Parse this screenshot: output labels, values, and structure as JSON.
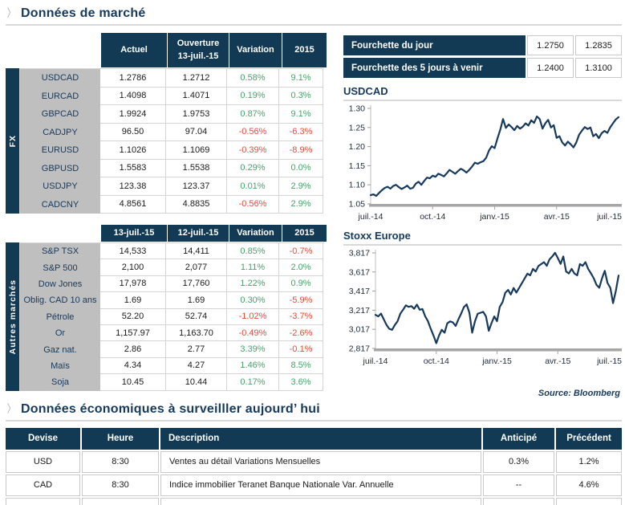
{
  "icons": {
    "chevron": "〉"
  },
  "colors": {
    "navy": "#133a54",
    "heading_text": "#17395c",
    "label_gray": "#bfbfbf",
    "positive_green": "#47a26c",
    "negative_red": "#e94a3b",
    "axis_gray": "#a6a6a6",
    "rule_gray": "#d9d9d9"
  },
  "sections": {
    "market": {
      "title": "Données de marché"
    },
    "econ": {
      "title": "Données économiques à surveilller aujourd’ hui"
    },
    "source": "Source: Bloomberg"
  },
  "range_table": {
    "rows": [
      {
        "label": "Fourchette du jour",
        "low": "1.2750",
        "high": "1.2835"
      },
      {
        "label": "Fourchette des 5 jours à venir",
        "low": "1.2400",
        "high": "1.3100"
      }
    ]
  },
  "fx_table": {
    "side_label": "FX",
    "headers": {
      "col1": "Actuel",
      "col2_line1": "Ouverture",
      "col2_line2": "13-juil.-15",
      "col3": "Variation",
      "col4": "2015"
    },
    "rows": [
      {
        "label": "USDCAD",
        "current": "1.2786",
        "open": "1.2712",
        "variation": "0.58%",
        "ytd": "9.1%"
      },
      {
        "label": "EURCAD",
        "current": "1.4098",
        "open": "1.4071",
        "variation": "0.19%",
        "ytd": "0.3%"
      },
      {
        "label": "GBPCAD",
        "current": "1.9924",
        "open": "1.9753",
        "variation": "0.87%",
        "ytd": "9.1%"
      },
      {
        "label": "CADJPY",
        "current": "96.50",
        "open": "97.04",
        "variation": "-0.56%",
        "ytd": "-6.3%"
      },
      {
        "label": "EURUSD",
        "current": "1.1026",
        "open": "1.1069",
        "variation": "-0.39%",
        "ytd": "-8.9%"
      },
      {
        "label": "GBPUSD",
        "current": "1.5583",
        "open": "1.5538",
        "variation": "0.29%",
        "ytd": "0.0%"
      },
      {
        "label": "USDJPY",
        "current": "123.38",
        "open": "123.37",
        "variation": "0.01%",
        "ytd": "2.9%"
      },
      {
        "label": "CADCNY",
        "current": "4.8561",
        "open": "4.8835",
        "variation": "-0.56%",
        "ytd": "2.9%"
      }
    ]
  },
  "markets_table": {
    "side_label": "Autres marchés",
    "headers": {
      "col1": "13-juil.-15",
      "col2": "12-juil.-15",
      "col3": "Variation",
      "col4": "2015"
    },
    "rows": [
      {
        "label": "S&P TSX",
        "current": "14,533",
        "open": "14,411",
        "variation": "0.85%",
        "ytd": "-0.7%"
      },
      {
        "label": "S&P 500",
        "current": "2,100",
        "open": "2,077",
        "variation": "1.11%",
        "ytd": "2.0%"
      },
      {
        "label": "Dow Jones",
        "current": "17,978",
        "open": "17,760",
        "variation": "1.22%",
        "ytd": "0.9%"
      },
      {
        "label": "Oblig. CAD 10 ans",
        "current": "1.69",
        "open": "1.69",
        "variation": "0.30%",
        "ytd": "-5.9%"
      },
      {
        "label": "Pétrole",
        "current": "52.20",
        "open": "52.74",
        "variation": "-1.02%",
        "ytd": "-3.7%"
      },
      {
        "label": "Or",
        "current": "1,157.97",
        "open": "1,163.70",
        "variation": "-0.49%",
        "ytd": "-2.6%"
      },
      {
        "label": "Gaz nat.",
        "current": "2.86",
        "open": "2.77",
        "variation": "3.39%",
        "ytd": "-0.1%"
      },
      {
        "label": "Maïs",
        "current": "4.34",
        "open": "4.27",
        "variation": "1.46%",
        "ytd": "8.5%"
      },
      {
        "label": "Soja",
        "current": "10.45",
        "open": "10.44",
        "variation": "0.17%",
        "ytd": "3.6%"
      }
    ]
  },
  "chart_data": [
    {
      "type": "line",
      "title": "USDCAD",
      "xlabel": "",
      "ylabel": "",
      "x_ticks": [
        "juil.-14",
        "oct.-14",
        "janv.-15",
        "avr.-15",
        "juil.-15"
      ],
      "y_ticks": [
        "1.30",
        "1.25",
        "1.20",
        "1.15",
        "1.10",
        "1.05"
      ],
      "ylim": [
        1.05,
        1.3
      ],
      "grid": false,
      "legend": "none",
      "values": [
        1.073,
        1.075,
        1.071,
        1.079,
        1.086,
        1.092,
        1.095,
        1.09,
        1.097,
        1.1,
        1.094,
        1.089,
        1.093,
        1.098,
        1.09,
        1.092,
        1.103,
        1.108,
        1.1,
        1.11,
        1.119,
        1.117,
        1.124,
        1.121,
        1.129,
        1.126,
        1.122,
        1.13,
        1.139,
        1.134,
        1.129,
        1.136,
        1.142,
        1.138,
        1.132,
        1.139,
        1.148,
        1.158,
        1.155,
        1.159,
        1.162,
        1.171,
        1.19,
        1.201,
        1.196,
        1.221,
        1.244,
        1.272,
        1.249,
        1.258,
        1.251,
        1.243,
        1.254,
        1.247,
        1.252,
        1.261,
        1.255,
        1.269,
        1.262,
        1.279,
        1.272,
        1.247,
        1.261,
        1.27,
        1.25,
        1.256,
        1.223,
        1.227,
        1.211,
        1.203,
        1.213,
        1.206,
        1.198,
        1.211,
        1.231,
        1.242,
        1.251,
        1.246,
        1.25,
        1.227,
        1.233,
        1.222,
        1.235,
        1.241,
        1.236,
        1.25,
        1.261,
        1.271,
        1.277
      ]
    },
    {
      "type": "line",
      "title": "Stoxx Europe",
      "xlabel": "",
      "ylabel": "",
      "x_ticks": [
        "juil.-14",
        "oct.-14",
        "janv.-15",
        "avr.-15",
        "juil.-15"
      ],
      "y_ticks": [
        "3,817",
        "3,617",
        "3,417",
        "3,217",
        "3,017",
        "2,817"
      ],
      "ylim": [
        2817,
        3817
      ],
      "grid": false,
      "legend": "none",
      "values": [
        3168,
        3152,
        3182,
        3122,
        3062,
        3022,
        3012,
        3062,
        3102,
        3182,
        3222,
        3268,
        3252,
        3260,
        3232,
        3276,
        3222,
        3230,
        3152,
        3102,
        3022,
        2952,
        2872,
        2952,
        3012,
        2982,
        3080,
        3100,
        3090,
        3052,
        3120,
        3180,
        3250,
        3278,
        3190,
        2982,
        3100,
        3180,
        3190,
        3200,
        3152,
        3002,
        3082,
        3152,
        3102,
        3252,
        3302,
        3400,
        3430,
        3382,
        3450,
        3402,
        3450,
        3500,
        3550,
        3600,
        3582,
        3650,
        3622,
        3680,
        3700,
        3720,
        3682,
        3750,
        3780,
        3818,
        3762,
        3702,
        3780,
        3622,
        3602,
        3650,
        3602,
        3582,
        3700,
        3682,
        3720,
        3650,
        3602,
        3552,
        3482,
        3452,
        3550,
        3630,
        3502,
        3452,
        3292,
        3420,
        3580
      ]
    }
  ],
  "econ_table": {
    "headers": {
      "devise": "Devise",
      "heure": "Heure",
      "description": "Description",
      "anticipe": "Anticipé",
      "precedent": "Précédent"
    },
    "rows": [
      {
        "devise": "USD",
        "heure": "8:30",
        "description": "Ventes au détail Variations Mensuelles",
        "anticipe": "0.3%",
        "precedent": "1.2%"
      },
      {
        "devise": "CAD",
        "heure": "8:30",
        "description": "Indice immobilier Teranet Banque Nationale Var. Annuelle",
        "anticipe": "--",
        "precedent": "4.6%"
      },
      {
        "devise": "",
        "heure": "",
        "description": "",
        "anticipe": "",
        "precedent": ""
      }
    ]
  }
}
